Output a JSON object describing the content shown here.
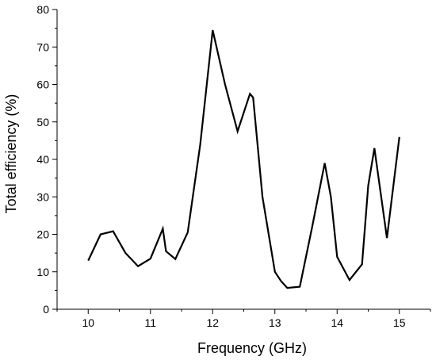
{
  "chart_data": {
    "type": "line",
    "xlabel": "Frequency (GHz)",
    "ylabel": "Total efficiency (%)",
    "xlim": [
      9.5,
      15.5
    ],
    "ylim": [
      0,
      80
    ],
    "x_ticks": [
      10,
      11,
      12,
      13,
      14,
      15
    ],
    "y_ticks": [
      0,
      10,
      20,
      30,
      40,
      50,
      60,
      70,
      80
    ],
    "grid": false,
    "legend": "none",
    "line_color": "#000000",
    "series": [
      {
        "x": [
          10.0,
          10.2,
          10.4,
          10.6,
          10.8,
          11.0,
          11.2,
          11.25,
          11.4,
          11.6,
          11.8,
          12.0,
          12.2,
          12.4,
          12.6,
          12.65,
          12.8,
          13.0,
          13.1,
          13.2,
          13.4,
          13.6,
          13.8,
          13.9,
          14.0,
          14.2,
          14.4,
          14.5,
          14.6,
          14.8,
          15.0
        ],
        "y": [
          13,
          20,
          20.8,
          15,
          11.5,
          13.5,
          21.5,
          15.5,
          13.4,
          20.5,
          44,
          74.5,
          60,
          47.5,
          57.5,
          56.5,
          30,
          10,
          7.5,
          5.7,
          6,
          22,
          39,
          30,
          14,
          7.8,
          12,
          33,
          43,
          19,
          46
        ]
      }
    ]
  }
}
